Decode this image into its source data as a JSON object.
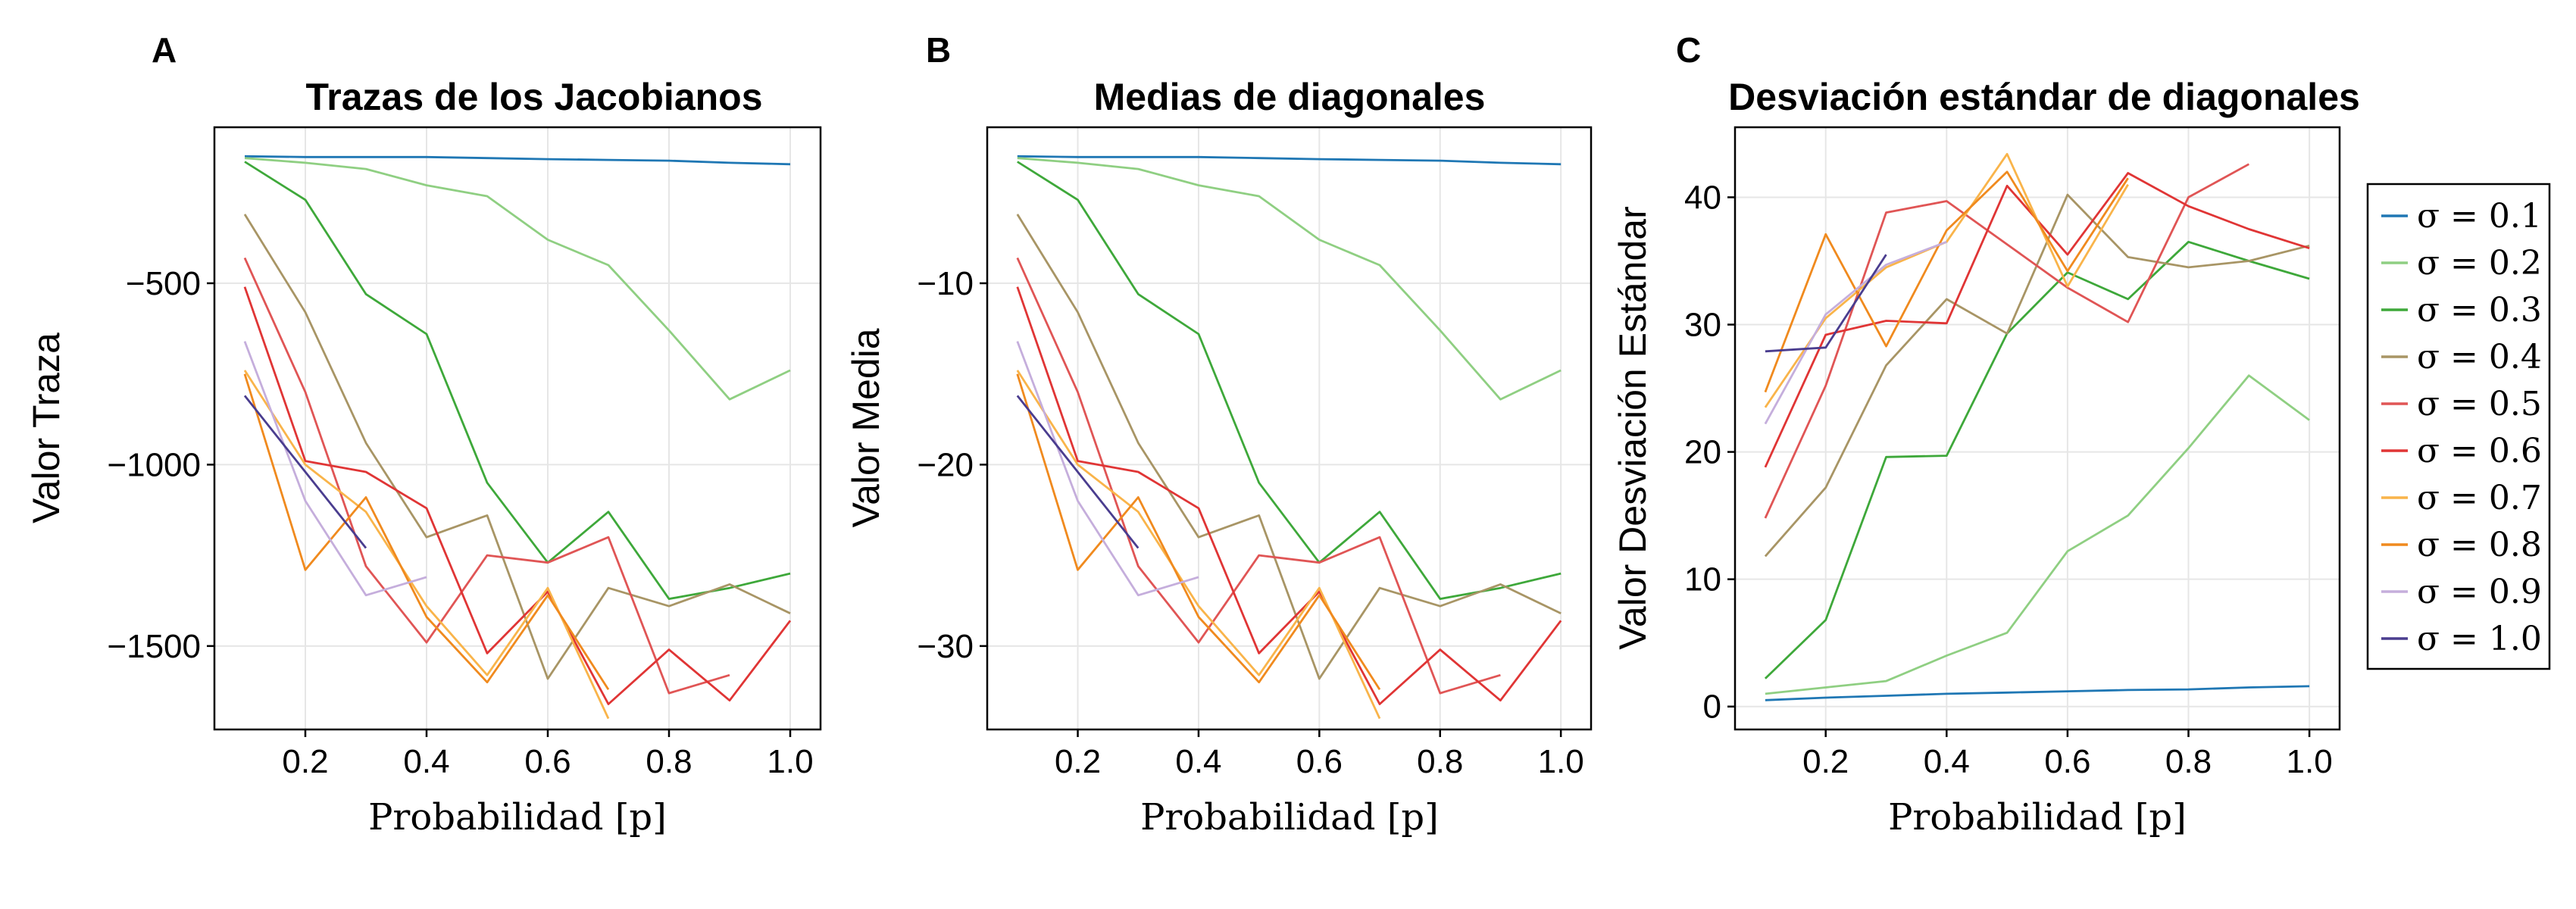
{
  "colors": {
    "0.1": "#1f77b4",
    "0.2": "#8fcf82",
    "0.3": "#3ea83a",
    "0.4": "#a89565",
    "0.5": "#e05555",
    "0.6": "#e03535",
    "0.7": "#f9b44a",
    "0.8": "#f08a1e",
    "0.9": "#c5aedc",
    "1.0": "#4a3d8f"
  },
  "legend": {
    "entries": [
      {
        "key": "0.1",
        "label": "σ = 0.1"
      },
      {
        "key": "0.2",
        "label": "σ = 0.2"
      },
      {
        "key": "0.3",
        "label": "σ = 0.3"
      },
      {
        "key": "0.4",
        "label": "σ = 0.4"
      },
      {
        "key": "0.5",
        "label": "σ = 0.5"
      },
      {
        "key": "0.6",
        "label": "σ = 0.6"
      },
      {
        "key": "0.7",
        "label": "σ = 0.7"
      },
      {
        "key": "0.8",
        "label": "σ = 0.8"
      },
      {
        "key": "0.9",
        "label": "σ = 0.9"
      },
      {
        "key": "1.0",
        "label": "σ = 1.0"
      }
    ]
  },
  "chart_data": [
    {
      "type": "line",
      "panel": "A",
      "title": "Trazas de los Jacobianos",
      "xlabel": "Probabilidad [p]",
      "ylabel": "Valor Traza",
      "xlim": [
        0.05,
        1.05
      ],
      "ylim": [
        -1730,
        -70
      ],
      "xticks": [
        0.2,
        0.4,
        0.6,
        0.8,
        1.0
      ],
      "xtick_labels": [
        "0.2",
        "0.4",
        "0.6",
        "0.8",
        "1.0"
      ],
      "yticks": [
        -500,
        -1000,
        -1500
      ],
      "ytick_labels": [
        "−500",
        "−1000",
        "−1500"
      ],
      "grid": true,
      "series": [
        {
          "key": "0.1",
          "x": [
            0.1,
            0.2,
            0.3,
            0.4,
            0.5,
            0.6,
            0.7,
            0.8,
            0.9,
            1.0
          ],
          "y": [
            -150,
            -152,
            -152,
            -152,
            -155,
            -158,
            -160,
            -162,
            -168,
            -172
          ]
        },
        {
          "key": "0.2",
          "x": [
            0.1,
            0.2,
            0.3,
            0.4,
            0.5,
            0.6,
            0.7,
            0.8,
            0.9,
            1.0
          ],
          "y": [
            -155,
            -168,
            -185,
            -230,
            -260,
            -380,
            -450,
            -630,
            -820,
            -740
          ]
        },
        {
          "key": "0.3",
          "x": [
            0.1,
            0.2,
            0.3,
            0.4,
            0.5,
            0.6,
            0.7,
            0.8,
            0.9,
            1.0
          ],
          "y": [
            -165,
            -270,
            -530,
            -640,
            -1050,
            -1270,
            -1130,
            -1370,
            -1340,
            -1300
          ]
        },
        {
          "key": "0.4",
          "x": [
            0.1,
            0.2,
            0.3,
            0.4,
            0.5,
            0.6,
            0.7,
            0.8,
            0.9,
            1.0
          ],
          "y": [
            -310,
            -580,
            -940,
            -1200,
            -1140,
            -1590,
            -1340,
            -1390,
            -1330,
            -1410
          ]
        },
        {
          "key": "0.5",
          "x": [
            0.1,
            0.2,
            0.3,
            0.4,
            0.5,
            0.6,
            0.7,
            0.8,
            0.9
          ],
          "y": [
            -430,
            -800,
            -1280,
            -1490,
            -1250,
            -1270,
            -1200,
            -1630,
            -1580
          ]
        },
        {
          "key": "0.6",
          "x": [
            0.1,
            0.2,
            0.3,
            0.4,
            0.5,
            0.6,
            0.7,
            0.8,
            0.9,
            1.0
          ],
          "y": [
            -510,
            -990,
            -1020,
            -1120,
            -1520,
            -1350,
            -1660,
            -1510,
            -1650,
            -1430
          ]
        },
        {
          "key": "0.7",
          "x": [
            0.1,
            0.2,
            0.3,
            0.4,
            0.5,
            0.6,
            0.7
          ],
          "y": [
            -740,
            -1000,
            -1130,
            -1390,
            -1580,
            -1340,
            -1700
          ]
        },
        {
          "key": "0.8",
          "x": [
            0.1,
            0.2,
            0.3,
            0.4,
            0.5,
            0.6,
            0.7
          ],
          "y": [
            -750,
            -1290,
            -1090,
            -1420,
            -1600,
            -1360,
            -1620
          ]
        },
        {
          "key": "0.9",
          "x": [
            0.1,
            0.2,
            0.3,
            0.4
          ],
          "y": [
            -660,
            -1100,
            -1360,
            -1310
          ]
        },
        {
          "key": "1.0",
          "x": [
            0.1,
            0.2,
            0.3
          ],
          "y": [
            -810,
            -1020,
            -1230
          ]
        }
      ]
    },
    {
      "type": "line",
      "panel": "B",
      "title": "Medias de diagonales",
      "xlabel": "Probabilidad [p]",
      "ylabel": "Valor Media",
      "xlim": [
        0.05,
        1.05
      ],
      "ylim": [
        -34.6,
        -1.4
      ],
      "xticks": [
        0.2,
        0.4,
        0.6,
        0.8,
        1.0
      ],
      "xtick_labels": [
        "0.2",
        "0.4",
        "0.6",
        "0.8",
        "1.0"
      ],
      "yticks": [
        -10,
        -20,
        -30
      ],
      "ytick_labels": [
        "−10",
        "−20",
        "−30"
      ],
      "grid": true,
      "series": [
        {
          "key": "0.1",
          "x": [
            0.1,
            0.2,
            0.3,
            0.4,
            0.5,
            0.6,
            0.7,
            0.8,
            0.9,
            1.0
          ],
          "y": [
            -3.0,
            -3.04,
            -3.04,
            -3.04,
            -3.1,
            -3.16,
            -3.2,
            -3.24,
            -3.36,
            -3.44
          ]
        },
        {
          "key": "0.2",
          "x": [
            0.1,
            0.2,
            0.3,
            0.4,
            0.5,
            0.6,
            0.7,
            0.8,
            0.9,
            1.0
          ],
          "y": [
            -3.1,
            -3.36,
            -3.7,
            -4.6,
            -5.2,
            -7.6,
            -9.0,
            -12.6,
            -16.4,
            -14.8
          ]
        },
        {
          "key": "0.3",
          "x": [
            0.1,
            0.2,
            0.3,
            0.4,
            0.5,
            0.6,
            0.7,
            0.8,
            0.9,
            1.0
          ],
          "y": [
            -3.3,
            -5.4,
            -10.6,
            -12.8,
            -21.0,
            -25.4,
            -22.6,
            -27.4,
            -26.8,
            -26.0
          ]
        },
        {
          "key": "0.4",
          "x": [
            0.1,
            0.2,
            0.3,
            0.4,
            0.5,
            0.6,
            0.7,
            0.8,
            0.9,
            1.0
          ],
          "y": [
            -6.2,
            -11.6,
            -18.8,
            -24.0,
            -22.8,
            -31.8,
            -26.8,
            -27.8,
            -26.6,
            -28.2
          ]
        },
        {
          "key": "0.5",
          "x": [
            0.1,
            0.2,
            0.3,
            0.4,
            0.5,
            0.6,
            0.7,
            0.8,
            0.9
          ],
          "y": [
            -8.6,
            -16.0,
            -25.6,
            -29.8,
            -25.0,
            -25.4,
            -24.0,
            -32.6,
            -31.6
          ]
        },
        {
          "key": "0.6",
          "x": [
            0.1,
            0.2,
            0.3,
            0.4,
            0.5,
            0.6,
            0.7,
            0.8,
            0.9,
            1.0
          ],
          "y": [
            -10.2,
            -19.8,
            -20.4,
            -22.4,
            -30.4,
            -27.0,
            -33.2,
            -30.2,
            -33.0,
            -28.6
          ]
        },
        {
          "key": "0.7",
          "x": [
            0.1,
            0.2,
            0.3,
            0.4,
            0.5,
            0.6,
            0.7
          ],
          "y": [
            -14.8,
            -20.0,
            -22.6,
            -27.8,
            -31.6,
            -26.8,
            -34.0
          ]
        },
        {
          "key": "0.8",
          "x": [
            0.1,
            0.2,
            0.3,
            0.4,
            0.5,
            0.6,
            0.7
          ],
          "y": [
            -15.0,
            -25.8,
            -21.8,
            -28.4,
            -32.0,
            -27.2,
            -32.4
          ]
        },
        {
          "key": "0.9",
          "x": [
            0.1,
            0.2,
            0.3,
            0.4
          ],
          "y": [
            -13.2,
            -22.0,
            -27.2,
            -26.2
          ]
        },
        {
          "key": "1.0",
          "x": [
            0.1,
            0.2,
            0.3
          ],
          "y": [
            -16.2,
            -20.4,
            -24.6
          ]
        }
      ]
    },
    {
      "type": "line",
      "panel": "C",
      "title": "Desviación estándar de diagonales",
      "xlabel": "Probabilidad [p]",
      "ylabel": "Valor Desviación Estándar",
      "xlim": [
        0.05,
        1.05
      ],
      "ylim": [
        -1.8,
        45.5
      ],
      "xticks": [
        0.2,
        0.4,
        0.6,
        0.8,
        1.0
      ],
      "xtick_labels": [
        "0.2",
        "0.4",
        "0.6",
        "0.8",
        "1.0"
      ],
      "yticks": [
        0,
        10,
        20,
        30,
        40
      ],
      "ytick_labels": [
        "0",
        "10",
        "20",
        "30",
        "40"
      ],
      "grid": true,
      "legend_position": "right",
      "series": [
        {
          "key": "0.1",
          "x": [
            0.1,
            0.2,
            0.3,
            0.4,
            0.5,
            0.6,
            0.7,
            0.8,
            0.9,
            1.0
          ],
          "y": [
            0.5,
            0.7,
            0.85,
            1.0,
            1.1,
            1.2,
            1.3,
            1.35,
            1.5,
            1.6
          ]
        },
        {
          "key": "0.2",
          "x": [
            0.1,
            0.2,
            0.3,
            0.4,
            0.5,
            0.6,
            0.7,
            0.8,
            0.9,
            1.0
          ],
          "y": [
            1.0,
            1.5,
            2.0,
            4.0,
            5.8,
            12.2,
            15.0,
            20.3,
            26.0,
            22.5
          ]
        },
        {
          "key": "0.3",
          "x": [
            0.1,
            0.2,
            0.3,
            0.4,
            0.5,
            0.6,
            0.7,
            0.8,
            0.9,
            1.0
          ],
          "y": [
            2.2,
            6.8,
            19.6,
            19.7,
            29.3,
            34.1,
            32.0,
            36.5,
            35.0,
            33.6
          ]
        },
        {
          "key": "0.4",
          "x": [
            0.1,
            0.2,
            0.3,
            0.4,
            0.5,
            0.6,
            0.7,
            0.8,
            0.9,
            1.0
          ],
          "y": [
            11.8,
            17.2,
            26.8,
            32.0,
            29.3,
            40.2,
            35.3,
            34.5,
            35.0,
            36.2
          ]
        },
        {
          "key": "0.5",
          "x": [
            0.1,
            0.2,
            0.3,
            0.4,
            0.5,
            0.6,
            0.7,
            0.8,
            0.9
          ],
          "y": [
            14.8,
            25.2,
            38.8,
            39.7,
            36.3,
            32.9,
            30.2,
            40.0,
            42.6
          ]
        },
        {
          "key": "0.6",
          "x": [
            0.1,
            0.2,
            0.3,
            0.4,
            0.5,
            0.6,
            0.7,
            0.8,
            0.9,
            1.0
          ],
          "y": [
            18.8,
            29.2,
            30.3,
            30.1,
            40.9,
            35.5,
            41.9,
            39.3,
            37.5,
            36.0
          ]
        },
        {
          "key": "0.7",
          "x": [
            0.1,
            0.2,
            0.3,
            0.4,
            0.5,
            0.6,
            0.7
          ],
          "y": [
            23.5,
            30.5,
            34.5,
            36.5,
            43.4,
            33.0,
            41.0
          ]
        },
        {
          "key": "0.8",
          "x": [
            0.1,
            0.2,
            0.3,
            0.4,
            0.5,
            0.6,
            0.7
          ],
          "y": [
            24.7,
            37.1,
            28.3,
            37.4,
            42.0,
            34.2,
            41.5
          ]
        },
        {
          "key": "0.9",
          "x": [
            0.1,
            0.2,
            0.3,
            0.4
          ],
          "y": [
            22.2,
            30.8,
            34.7,
            36.5
          ]
        },
        {
          "key": "1.0",
          "x": [
            0.1,
            0.2,
            0.3
          ],
          "y": [
            27.9,
            28.2,
            35.5
          ]
        }
      ]
    }
  ]
}
